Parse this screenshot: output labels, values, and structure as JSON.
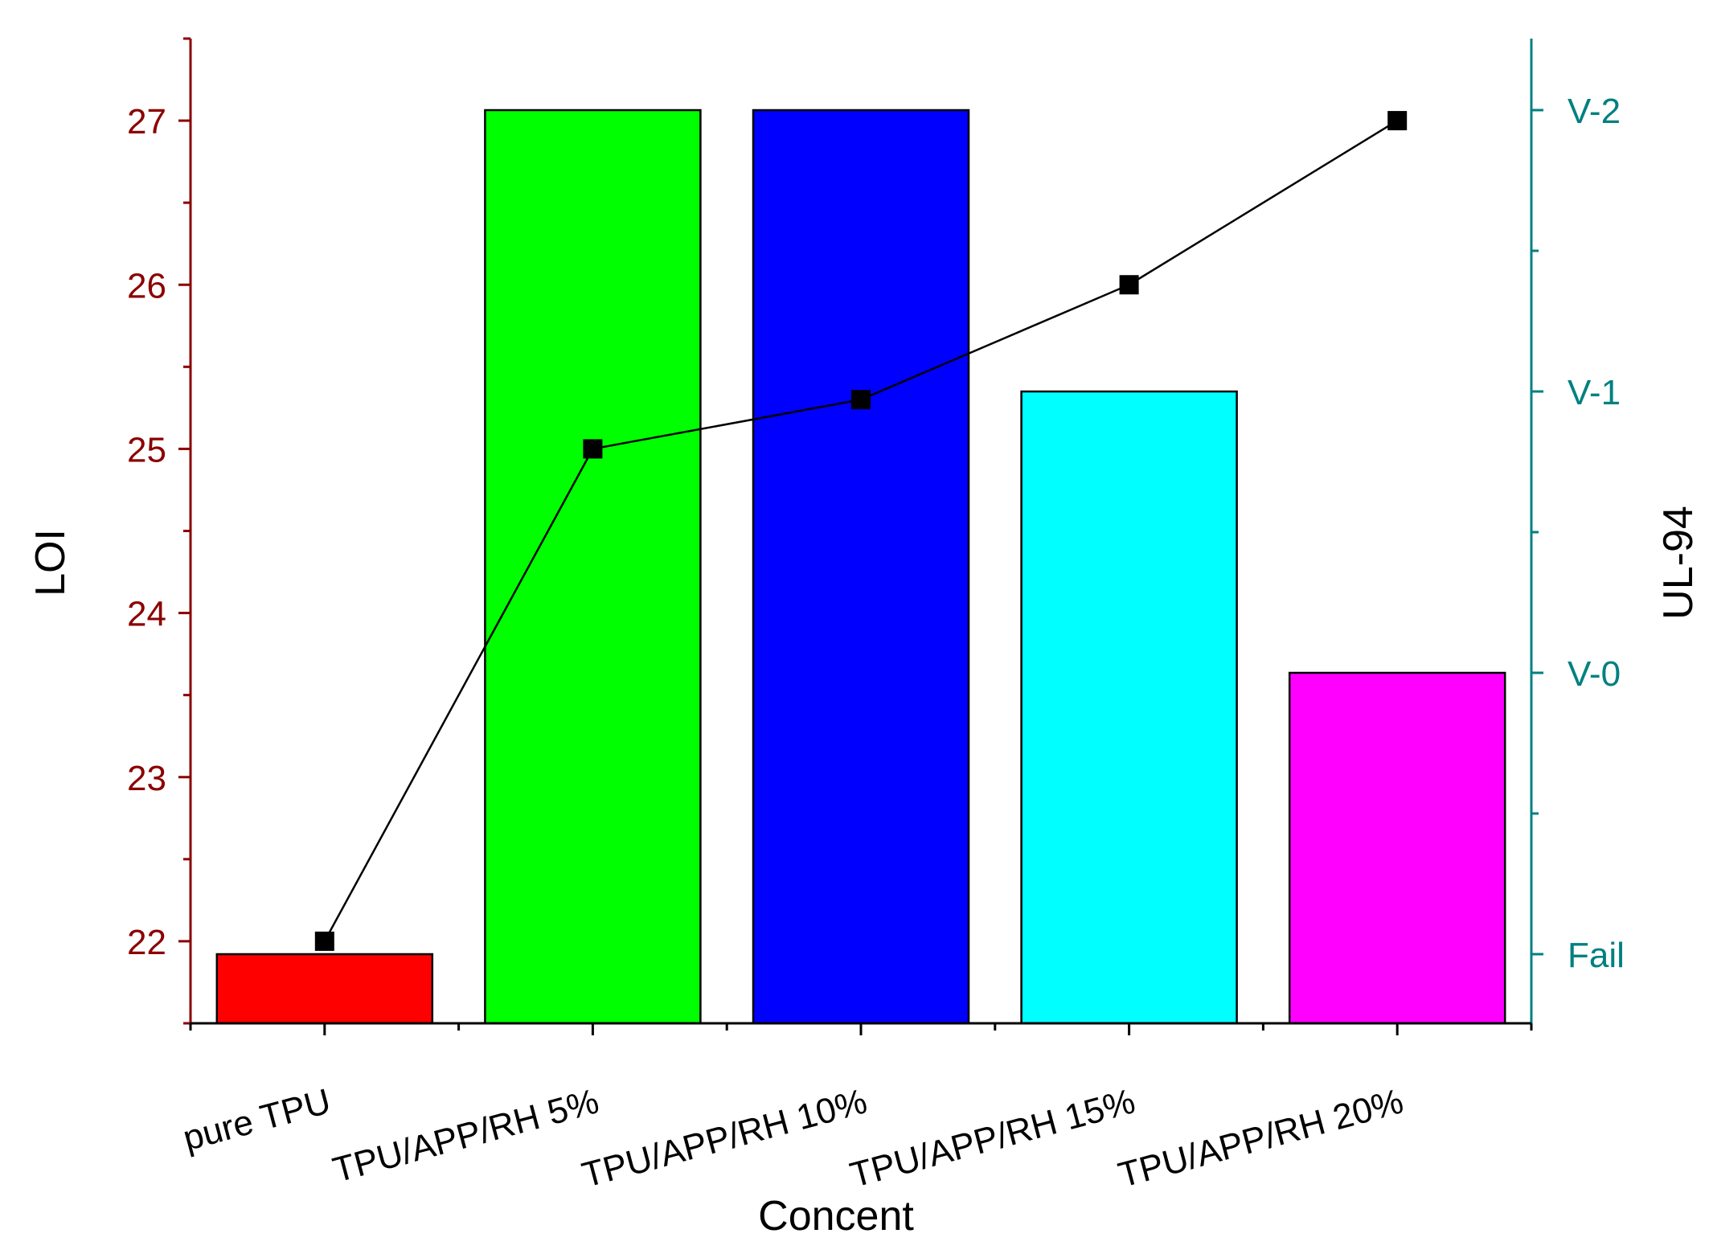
{
  "chart_data": {
    "type": "bar",
    "xlabel": "Concent",
    "ylabel": "LOI",
    "ylabel_right": "UL-94",
    "categories": [
      "pure TPU",
      "TPU/APP/RH 5%",
      "TPU/APP/RH 10%",
      "TPU/APP/RH 15%",
      "TPU/APP/RH 20%"
    ],
    "bars": {
      "axis": "right",
      "values": [
        "Fail",
        "V-2",
        "V-2",
        "V-1",
        "V-0"
      ],
      "colors": [
        "#ff0000",
        "#00ff00",
        "#0000ff",
        "#00ffff",
        "#ff00ff"
      ]
    },
    "line": {
      "axis": "left",
      "values": [
        22,
        25,
        25.3,
        26,
        27
      ],
      "color": "#000000",
      "marker": "square"
    },
    "y_left": {
      "range": [
        21.5,
        27.5
      ],
      "ticks": [
        22,
        23,
        24,
        25,
        26,
        27
      ],
      "color": "#8b0000"
    },
    "y_right": {
      "levels": [
        "V-0",
        "V-1",
        "V-2",
        "Fail"
      ],
      "tick_labels": [
        "Fail",
        "V-0",
        "V-1",
        "V-2"
      ],
      "color": "#008080"
    },
    "grid": false,
    "legend": "none"
  }
}
